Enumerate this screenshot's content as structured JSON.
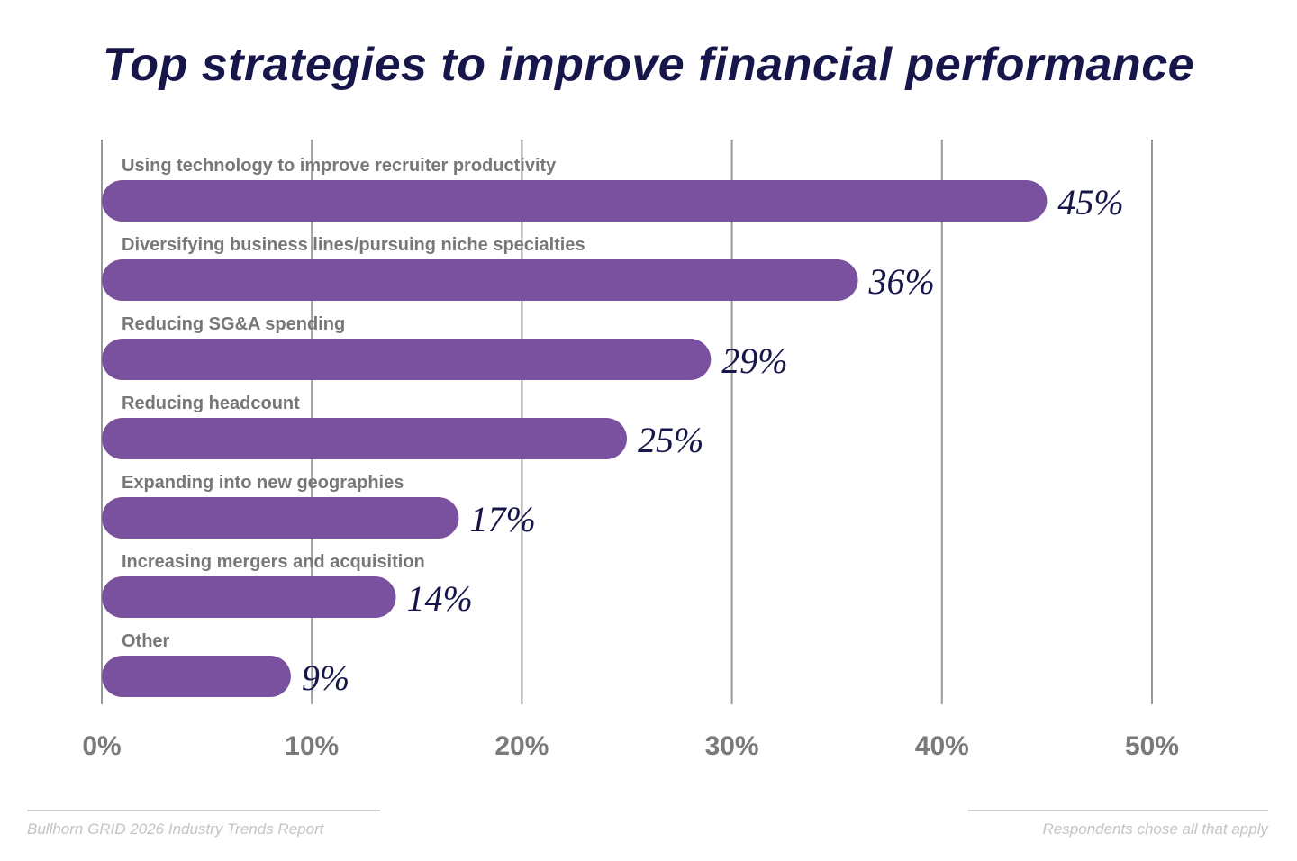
{
  "title": "Top strategies to improve financial performance",
  "chart_data": {
    "type": "bar",
    "orientation": "horizontal",
    "title": "Top strategies to improve financial performance",
    "categories": [
      "Using technology to improve recruiter productivity",
      "Diversifying business lines/pursuing niche specialties",
      "Reducing SG&A spending",
      "Reducing headcount",
      "Expanding into new geographies",
      "Increasing mergers and acquisition",
      "Other"
    ],
    "values": [
      45,
      36,
      29,
      25,
      17,
      14,
      9
    ],
    "data_labels": [
      "45%",
      "36%",
      "29%",
      "25%",
      "17%",
      "14%",
      "9%"
    ],
    "xlim": [
      0,
      50
    ],
    "xticks": [
      "0%",
      "10%",
      "20%",
      "30%",
      "40%",
      "50%"
    ],
    "grid": true,
    "colors": {
      "bar": "#7a519e",
      "title": "#16164a",
      "value_label": "#16164a",
      "category_label": "#777777",
      "grid": "#999999"
    }
  },
  "footer": {
    "source": "Bullhorn GRID 2026 Industry Trends Report",
    "note": "Respondents chose all that apply"
  }
}
